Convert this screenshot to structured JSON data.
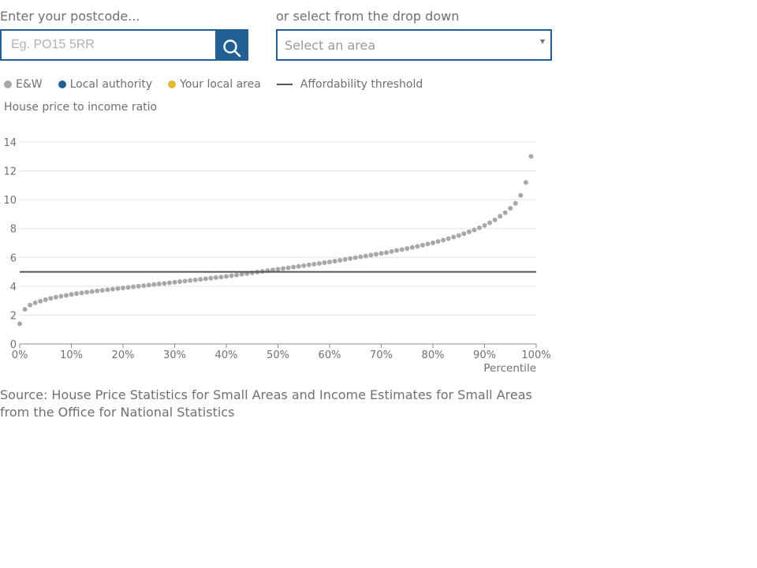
{
  "postcode": {
    "label": "Enter your postcode...",
    "placeholder": "Eg. PO15 5RR",
    "value": ""
  },
  "search_button": {
    "icon": "search-icon"
  },
  "area_select": {
    "label": "or select from the drop down",
    "selected": "Select an area"
  },
  "legend": [
    {
      "label": "E&W",
      "marker": "dot",
      "color": "#a8a8a8"
    },
    {
      "label": "Local authority",
      "marker": "dot",
      "color": "#206095"
    },
    {
      "label": "Your local area",
      "marker": "dot",
      "color": "#e0b92c"
    },
    {
      "label": "Affordability threshold",
      "marker": "line",
      "color": "#555555"
    }
  ],
  "chart_data": {
    "type": "scatter",
    "title": "",
    "ylabel": "House price to income ratio",
    "xlabel": "Percentile",
    "x_unit": "%",
    "xlim": [
      0,
      100
    ],
    "ylim": [
      0,
      14
    ],
    "xticks": [
      0,
      10,
      20,
      30,
      40,
      50,
      60,
      70,
      80,
      90,
      100
    ],
    "xtick_labels": [
      "0%",
      "10%",
      "20%",
      "30%",
      "40%",
      "50%",
      "60%",
      "70%",
      "80%",
      "90%",
      "100%"
    ],
    "yticks": [
      0,
      2,
      4,
      6,
      8,
      10,
      12,
      14
    ],
    "ytick_labels": [
      "0",
      "2",
      "4",
      "6",
      "8",
      "10",
      "12",
      "14"
    ],
    "grid": "horizontal",
    "threshold": {
      "name": "Affordability threshold",
      "y": 5,
      "color": "#555555"
    },
    "series": [
      {
        "name": "E&W",
        "color": "#a8a8a8",
        "x": [
          0,
          1,
          2,
          3,
          4,
          5,
          6,
          7,
          8,
          9,
          10,
          11,
          12,
          13,
          14,
          15,
          16,
          17,
          18,
          19,
          20,
          21,
          22,
          23,
          24,
          25,
          26,
          27,
          28,
          29,
          30,
          31,
          32,
          33,
          34,
          35,
          36,
          37,
          38,
          39,
          40,
          41,
          42,
          43,
          44,
          45,
          46,
          47,
          48,
          49,
          50,
          51,
          52,
          53,
          54,
          55,
          56,
          57,
          58,
          59,
          60,
          61,
          62,
          63,
          64,
          65,
          66,
          67,
          68,
          69,
          70,
          71,
          72,
          73,
          74,
          75,
          76,
          77,
          78,
          79,
          80,
          81,
          82,
          83,
          84,
          85,
          86,
          87,
          88,
          89,
          90,
          91,
          92,
          93,
          94,
          95,
          96,
          97,
          98,
          99
        ],
        "y": [
          1.4,
          2.4,
          2.7,
          2.85,
          2.97,
          3.07,
          3.16,
          3.24,
          3.31,
          3.37,
          3.43,
          3.49,
          3.54,
          3.59,
          3.63,
          3.68,
          3.72,
          3.76,
          3.8,
          3.84,
          3.88,
          3.92,
          3.96,
          4.0,
          4.04,
          4.08,
          4.12,
          4.16,
          4.2,
          4.24,
          4.28,
          4.32,
          4.36,
          4.4,
          4.44,
          4.48,
          4.52,
          4.56,
          4.6,
          4.64,
          4.68,
          4.73,
          4.78,
          4.83,
          4.88,
          4.93,
          4.98,
          5.03,
          5.08,
          5.13,
          5.18,
          5.23,
          5.28,
          5.33,
          5.38,
          5.43,
          5.48,
          5.53,
          5.58,
          5.63,
          5.68,
          5.74,
          5.8,
          5.86,
          5.92,
          5.98,
          6.04,
          6.1,
          6.16,
          6.22,
          6.28,
          6.34,
          6.41,
          6.48,
          6.55,
          6.62,
          6.69,
          6.77,
          6.85,
          6.93,
          7.01,
          7.1,
          7.2,
          7.3,
          7.41,
          7.52,
          7.64,
          7.77,
          7.9,
          8.05,
          8.22,
          8.4,
          8.6,
          8.85,
          9.1,
          9.4,
          9.75,
          10.3,
          11.2,
          13.0
        ]
      }
    ]
  },
  "source_text": "Source: House Price Statistics for Small Areas and Income Estimates for Small Areas from the Office for National Statistics"
}
